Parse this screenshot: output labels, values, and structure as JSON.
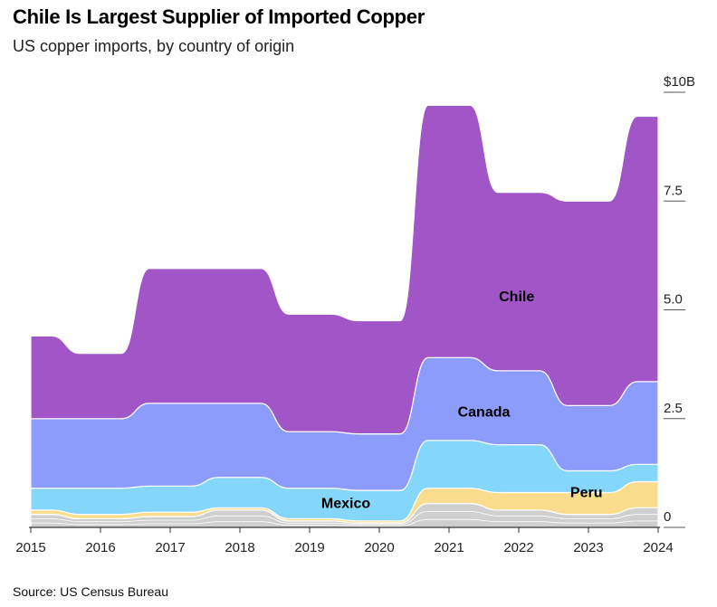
{
  "header": {
    "title": "Chile Is Largest Supplier of Imported Copper",
    "subtitle": "US copper imports, by country of origin"
  },
  "footer": {
    "source": "Source: US Census Bureau"
  },
  "chart_data": {
    "type": "area",
    "title": "Chile Is Largest Supplier of Imported Copper",
    "subtitle": "US copper imports, by country of origin",
    "units": "billions of US dollars",
    "x": [
      2015,
      2016,
      2017,
      2018,
      2019,
      2020,
      2021,
      2022,
      2023,
      2024
    ],
    "x_tick_labels": [
      "2015",
      "2016",
      "2017",
      "2018",
      "2019",
      "2020",
      "2021",
      "2022",
      "2023",
      "2024"
    ],
    "y_ticks": [
      0,
      2.5,
      5.0,
      7.5,
      10
    ],
    "y_tick_labels": [
      "0",
      "2.5",
      "5.0",
      "7.5",
      "$10B"
    ],
    "ylim": [
      0,
      10
    ],
    "series": [
      {
        "name": "Other",
        "label": "",
        "color": "#cfcfcf",
        "values": [
          0.3,
          0.2,
          0.25,
          0.4,
          0.15,
          0.1,
          0.55,
          0.4,
          0.3,
          0.45
        ]
      },
      {
        "name": "Peru",
        "label": "Peru",
        "color": "#f9dd8c",
        "values": [
          0.1,
          0.1,
          0.1,
          0.05,
          0.05,
          0.05,
          0.35,
          0.4,
          0.5,
          0.6
        ]
      },
      {
        "name": "Mexico",
        "label": "Mexico",
        "color": "#85d6fb",
        "values": [
          0.5,
          0.6,
          0.6,
          0.7,
          0.7,
          0.7,
          1.1,
          1.1,
          0.5,
          0.4
        ]
      },
      {
        "name": "Canada",
        "label": "Canada",
        "color": "#8b9cfd",
        "values": [
          1.6,
          1.6,
          1.9,
          1.7,
          1.3,
          1.3,
          1.9,
          1.7,
          1.5,
          1.9
        ]
      },
      {
        "name": "Chile",
        "label": "Chile",
        "color": "#a155c7",
        "values": [
          1.9,
          1.5,
          3.1,
          3.1,
          2.7,
          2.6,
          5.8,
          4.1,
          4.7,
          6.1
        ]
      }
    ],
    "label_positions": [
      {
        "series": "Chile",
        "x": 2021.97,
        "y": 5.3
      },
      {
        "series": "Canada",
        "x": 2021.5,
        "y": 2.65
      },
      {
        "series": "Mexico",
        "x": 2019.52,
        "y": 0.55
      },
      {
        "series": "Peru",
        "x": 2022.97,
        "y": 0.8
      }
    ]
  }
}
